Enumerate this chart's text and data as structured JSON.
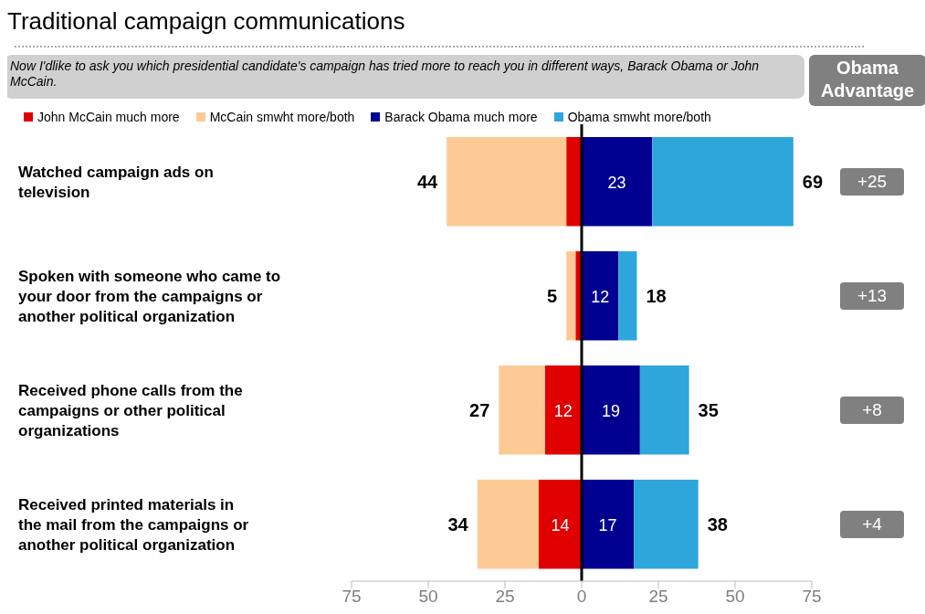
{
  "chart_data": {
    "type": "bar",
    "orientation": "horizontal",
    "title": "Traditional campaign communications",
    "subtitle": "Now I'dlike to ask you which presidential candidate's campaign has tried more to reach you in different ways, Barack Obama or John McCain.",
    "categories": [
      "Watched campaign ads on television",
      "Spoken with someone who came to your door from the campaigns or another political organization",
      "Received phone calls from the campaigns or other political organizations",
      "Received printed materials in the mail from the campaigns or another political organization"
    ],
    "series": [
      {
        "name": "John McCain much more",
        "color": "#e00000",
        "values": [
          5,
          2,
          12,
          14
        ],
        "base": [
          -5,
          -2,
          -12,
          -14
        ],
        "value_labels": [
          null,
          null,
          "12",
          "14"
        ]
      },
      {
        "name": "McCain smwht more/both",
        "color": "#fdca96",
        "values": [
          39,
          3,
          15,
          20
        ],
        "base": [
          -44,
          -5,
          -27,
          -34
        ]
      },
      {
        "name": "Barack Obama much more",
        "color": "#000090",
        "values": [
          23,
          12,
          19,
          17
        ],
        "base": [
          0,
          0,
          0,
          0
        ],
        "value_labels": [
          "23",
          "12",
          "19",
          "17"
        ]
      },
      {
        "name": "Obama smwht more/both",
        "color": "#2ea6dc",
        "values": [
          46,
          6,
          16,
          21
        ],
        "base": [
          23,
          12,
          19,
          17
        ]
      }
    ],
    "totals": [
      [
        "44",
        "69"
      ],
      [
        "5",
        "18"
      ],
      [
        "27",
        "35"
      ],
      [
        "34",
        "38"
      ]
    ],
    "xlim": [
      -75,
      75
    ],
    "xticks": [
      {
        "value": -75,
        "label": "75"
      },
      {
        "value": -50,
        "label": "50"
      },
      {
        "value": -25,
        "label": "25"
      },
      0,
      25,
      50,
      75
    ],
    "ref_lines": [
      {
        "axis": "x",
        "value": 0,
        "color": "#000000"
      }
    ],
    "annotations": [
      "Obama Advantage",
      "+25",
      "+13",
      "+8",
      "+4"
    ],
    "legend": "top"
  }
}
